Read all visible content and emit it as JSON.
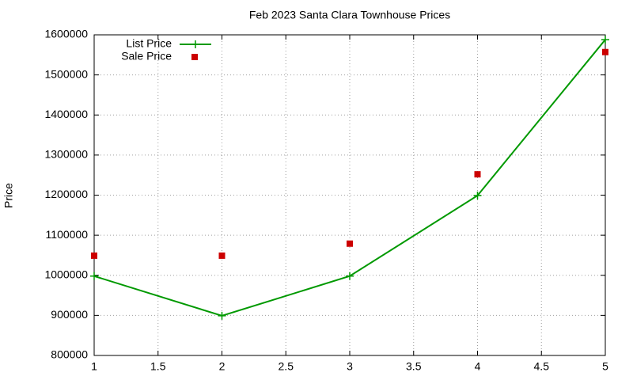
{
  "chart_data": {
    "type": "line",
    "title": "Feb 2023 Santa Clara Townhouse Prices",
    "ylabel": "Price",
    "x": [
      1,
      2,
      3,
      4,
      5
    ],
    "series": [
      {
        "name": "List Price",
        "color": "#009900",
        "mode": "linespoints",
        "values": [
          998000,
          899000,
          998000,
          1199000,
          1588000
        ]
      },
      {
        "name": "Sale Price",
        "color": "#cc0000",
        "mode": "points",
        "values": [
          1049000,
          1049000,
          1079000,
          1252000,
          1557000
        ]
      }
    ],
    "xlim": [
      1,
      5
    ],
    "xticks": [
      1,
      1.5,
      2,
      2.5,
      3,
      3.5,
      4,
      4.5,
      5
    ],
    "ylim": [
      800000,
      1600000
    ],
    "yticks": [
      800000,
      900000,
      1000000,
      1100000,
      1200000,
      1300000,
      1400000,
      1500000,
      1600000
    ],
    "grid": true,
    "legend": "top-left"
  }
}
